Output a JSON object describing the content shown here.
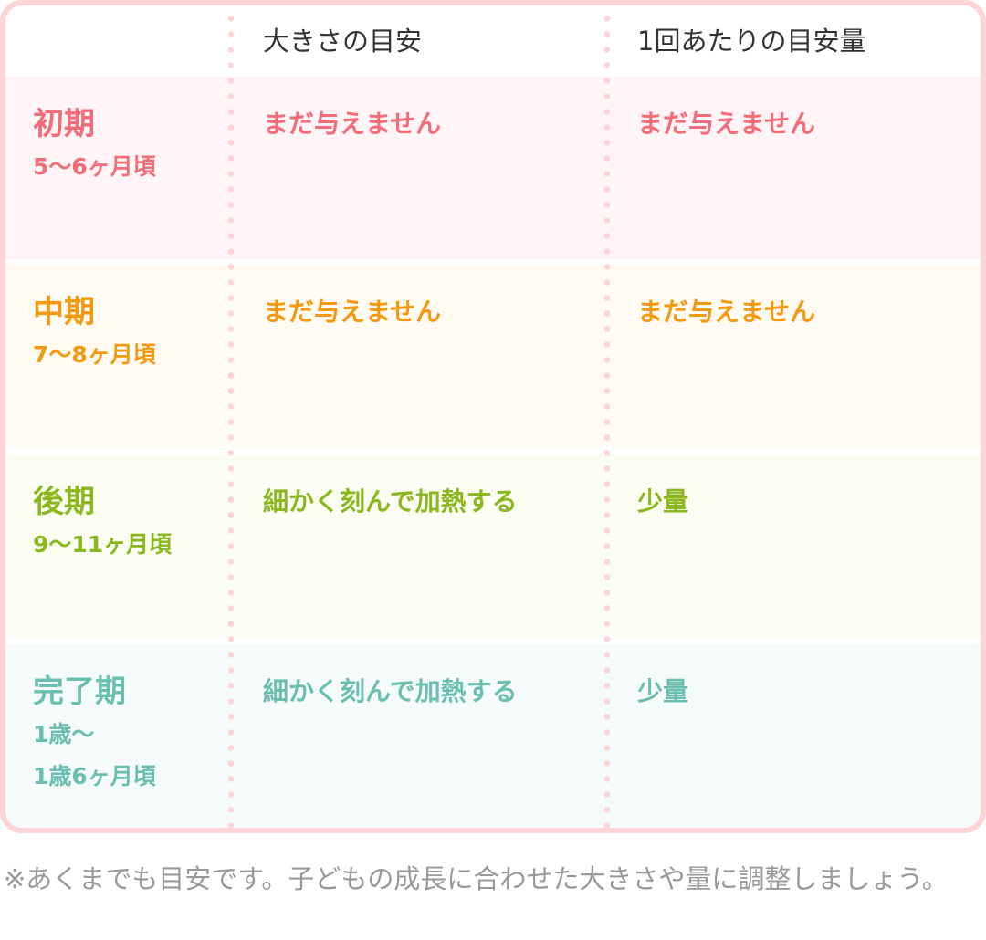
{
  "header": {
    "col1": "大きさの目安",
    "col2": "1回あたりの目安量"
  },
  "rows": [
    {
      "stage": "初期",
      "age": "5～6ヶ月頃",
      "size": "まだ与えません",
      "amount": "まだ与えません",
      "color": "#f26d78",
      "bg": "#fff5f6"
    },
    {
      "stage": "中期",
      "age": "7～8ヶ月頃",
      "size": "まだ与えません",
      "amount": "まだ与えません",
      "color": "#f39a12",
      "bg": "#fffbf2"
    },
    {
      "stage": "後期",
      "age": "9～11ヶ月頃",
      "size": "細かく刻んで加熱する",
      "amount": "少量",
      "color": "#8ab81e",
      "bg": "#fbfdf3"
    },
    {
      "stage": "完了期",
      "age": "1歳～\n1歳6ヶ月頃",
      "size": "細かく刻んで加熱する",
      "amount": "少量",
      "color": "#6bbfb0",
      "bg": "#f5fbfa"
    }
  ],
  "note": "※あくまでも目安です。子どもの成長に合わせた大きさや量に調整しましょう。"
}
